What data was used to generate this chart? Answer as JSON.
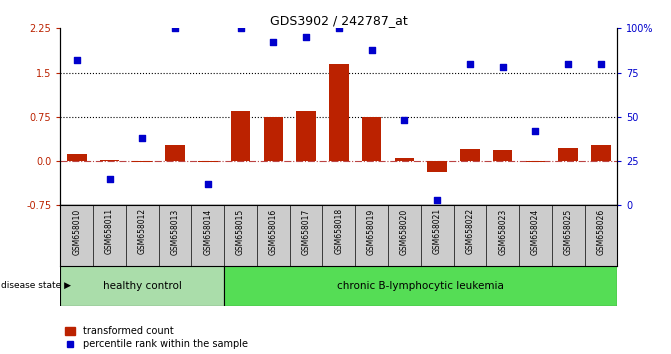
{
  "title": "GDS3902 / 242787_at",
  "samples": [
    "GSM658010",
    "GSM658011",
    "GSM658012",
    "GSM658013",
    "GSM658014",
    "GSM658015",
    "GSM658016",
    "GSM658017",
    "GSM658018",
    "GSM658019",
    "GSM658020",
    "GSM658021",
    "GSM658022",
    "GSM658023",
    "GSM658024",
    "GSM658025",
    "GSM658026"
  ],
  "bar_values": [
    0.12,
    0.02,
    -0.02,
    0.28,
    -0.02,
    0.85,
    0.75,
    0.85,
    1.65,
    0.75,
    0.05,
    -0.18,
    0.2,
    0.18,
    -0.02,
    0.22,
    0.27
  ],
  "dot_values": [
    82,
    15,
    38,
    100,
    12,
    100,
    92,
    95,
    100,
    88,
    48,
    3,
    80,
    78,
    42,
    80,
    80
  ],
  "ylim_left": [
    -0.75,
    2.25
  ],
  "ylim_right": [
    0,
    100
  ],
  "yticks_left": [
    -0.75,
    0.0,
    0.75,
    1.5,
    2.25
  ],
  "yticks_right": [
    0,
    25,
    50,
    75,
    100
  ],
  "ytick_labels_right": [
    "0",
    "25",
    "50",
    "75",
    "100%"
  ],
  "hlines": [
    0.75,
    1.5
  ],
  "healthy_count": 5,
  "healthy_label": "healthy control",
  "disease_label": "chronic B-lymphocytic leukemia",
  "bar_color": "#BB2200",
  "dot_color": "#0000CC",
  "healthy_bg": "#AADDAA",
  "disease_bg": "#55DD55",
  "zero_line_color": "#BB4444",
  "hline_color": "#000000",
  "legend_bar_label": "transformed count",
  "legend_dot_label": "percentile rank within the sample",
  "disease_state_label": "disease state",
  "bg_color": "#FFFFFF",
  "plot_bg": "#FFFFFF",
  "tick_label_area_bg": "#CCCCCC"
}
